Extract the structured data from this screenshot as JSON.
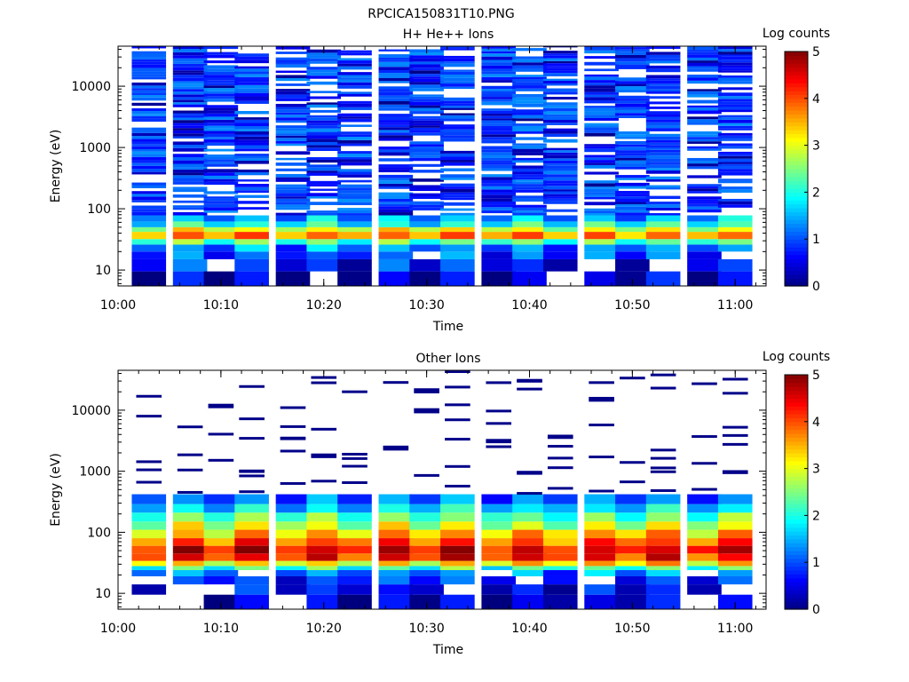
{
  "figure_title": "RPCICA150831T10.PNG",
  "colormap": [
    "#00007f",
    "#0000ff",
    "#007fff",
    "#00ffff",
    "#7fff7f",
    "#ffff00",
    "#ff7f00",
    "#ff0000",
    "#7f0000"
  ],
  "chart_data": [
    {
      "type": "heatmap",
      "title": "H+ He++ Ions",
      "xlabel": "Time",
      "ylabel": "Energy (eV)",
      "x_ticks": [
        "10:00",
        "10:10",
        "10:20",
        "10:30",
        "10:40",
        "10:50",
        "11:00"
      ],
      "x_range": [
        "10:00",
        "11:03"
      ],
      "y_scale": "log",
      "y_ticks": [
        "10",
        "100",
        "1000",
        "10000"
      ],
      "y_range": [
        5.5,
        45000
      ],
      "colorbar_label": "Log counts",
      "colorbar_ticks": [
        "0",
        "1",
        "2",
        "3",
        "4",
        "5"
      ],
      "z_range": [
        0,
        5
      ],
      "time_bins": [
        "10:03",
        "10:07",
        "10:10",
        "10:13",
        "10:17",
        "10:20",
        "10:23",
        "10:27",
        "10:30",
        "10:33",
        "10:37",
        "10:40",
        "10:43",
        "10:47",
        "10:50",
        "10:53",
        "10:57",
        "11:00"
      ],
      "profile": {
        "low_energy": [
          [
            5.5,
            9.5,
            0.2
          ],
          [
            9.5,
            15,
            0.55
          ],
          [
            15,
            20,
            0.8
          ],
          [
            20,
            26,
            1.1
          ],
          [
            26,
            32,
            2.1
          ],
          [
            32,
            42,
            3.6
          ],
          [
            42,
            50,
            2.8
          ],
          [
            50,
            62,
            1.8
          ],
          [
            62,
            78,
            1.3
          ]
        ],
        "high_energy": {
          "from": 78,
          "to": 45000,
          "base": 1.0,
          "spread": 0.35,
          "gap_fraction": 0.22
        }
      }
    },
    {
      "type": "heatmap",
      "title": "Other Ions",
      "xlabel": "Time",
      "ylabel": "Energy (eV)",
      "x_ticks": [
        "10:00",
        "10:10",
        "10:20",
        "10:30",
        "10:40",
        "10:50",
        "11:00"
      ],
      "x_range": [
        "10:00",
        "11:03"
      ],
      "y_scale": "log",
      "y_ticks": [
        "10",
        "100",
        "1000",
        "10000"
      ],
      "y_range": [
        5.5,
        45000
      ],
      "colorbar_label": "Log counts",
      "colorbar_ticks": [
        "0",
        "1",
        "2",
        "3",
        "4",
        "5"
      ],
      "z_range": [
        0,
        5
      ],
      "time_bins": [
        "10:03",
        "10:07",
        "10:10",
        "10:13",
        "10:17",
        "10:20",
        "10:23",
        "10:27",
        "10:30",
        "10:33",
        "10:37",
        "10:40",
        "10:43",
        "10:47",
        "10:50",
        "10:53",
        "10:57",
        "11:00"
      ],
      "profile": {
        "low_energy": [
          [
            5.5,
            9.5,
            0.2
          ],
          [
            9.5,
            14,
            0.4
          ],
          [
            14,
            19,
            0.7
          ],
          [
            19,
            24,
            1.1
          ],
          [
            24,
            28,
            2.0
          ],
          [
            28,
            34,
            3.1
          ],
          [
            34,
            45,
            4.1
          ],
          [
            45,
            60,
            4.3
          ],
          [
            60,
            80,
            3.8
          ],
          [
            80,
            110,
            3.2
          ],
          [
            110,
            150,
            2.7
          ],
          [
            150,
            210,
            2.1
          ],
          [
            210,
            290,
            1.5
          ],
          [
            290,
            420,
            1.0
          ]
        ],
        "sparse_lines": {
          "from": 420,
          "to": 45000,
          "value": 0.05
        }
      }
    }
  ]
}
